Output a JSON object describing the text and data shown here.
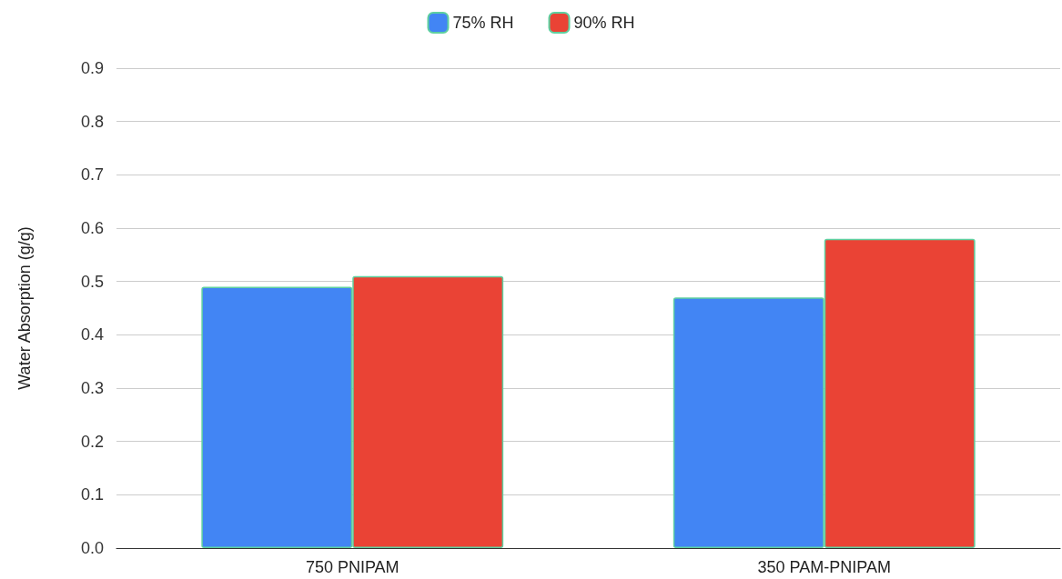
{
  "chart_data": {
    "type": "bar",
    "ylabel": "Water Absorption (g/g)",
    "categories": [
      "750 PNIPAM",
      "350 PAM-PNIPAM"
    ],
    "series": [
      {
        "name": "75% RH",
        "color": "#4285f4",
        "values": [
          0.49,
          0.47
        ]
      },
      {
        "name": "90% RH",
        "color": "#ea4335",
        "values": [
          0.51,
          0.58
        ]
      }
    ],
    "ylim": [
      0,
      0.9
    ],
    "yticks": [
      "0.0",
      0.1,
      0.2,
      0.3,
      0.4,
      0.5,
      0.6,
      0.7,
      0.8,
      0.9
    ],
    "grid": "y",
    "legend": "top"
  }
}
